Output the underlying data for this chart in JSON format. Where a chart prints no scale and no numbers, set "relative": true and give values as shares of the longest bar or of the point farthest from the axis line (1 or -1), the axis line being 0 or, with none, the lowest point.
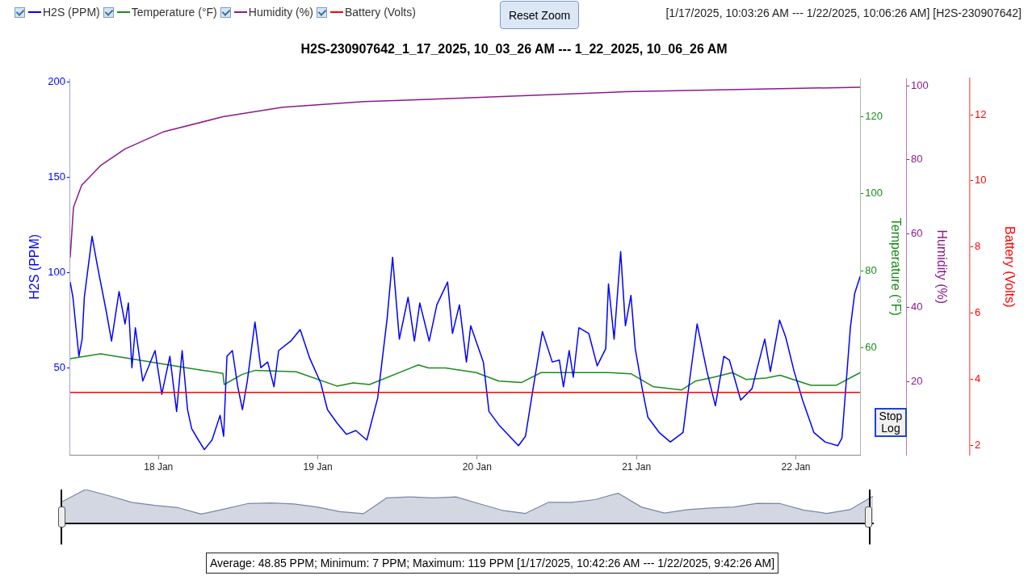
{
  "chart_data": [
    {
      "type": "line",
      "title": "H2S-230907642_1_17_2025, 10_03_26 AM --- 1_22_2025, 10_06_26 AM",
      "ylabel": "H2S (PPM)",
      "y2label": "Temperature (°F)",
      "y3label": "Humidity (%)",
      "annotations": [
        "[1/17/2025, 10:03:26 AM --- 1/22/2025, 10:06:26 AM] [H2S-230907642]",
        "Reset Zoom",
        "Stop Log",
        "Average: 48.85 PPM; Minimum: 7 PPM; Maximum: 119 PPM [1/17/2025, 10:42:26 AM --- 1/22/2025, 9:42:26 AM]"
      ],
      "xlim": [
        "2025-01-17T10:42",
        "2025-01-22T09:42"
      ],
      "xticks": [
        {
          "value": "2025-01-18",
          "label": "18 Jan"
        },
        {
          "value": "2025-01-19",
          "label": "19 Jan"
        },
        {
          "value": "2025-01-20",
          "label": "20 Jan"
        },
        {
          "value": "2025-01-21",
          "label": "21 Jan"
        },
        {
          "value": "2025-01-22",
          "label": "22 Jan"
        }
      ],
      "ylim": [
        4,
        202
      ],
      "yticks": [
        50,
        100,
        150,
        200
      ],
      "y2lim": [
        32,
        130
      ],
      "y2ticks": [
        60,
        80,
        100,
        120
      ],
      "y3lim": [
        0,
        102
      ],
      "y3ticks": [
        20,
        40,
        60,
        80,
        100
      ],
      "grid": false,
      "legend": "top left",
      "series": [
        {
          "name": "H2S (PPM)",
          "color": "#0000ff",
          "axis": "y",
          "x": [
            "2025-01-17T10:42",
            "2025-01-17T11:07",
            "2025-01-17T12:01",
            "2025-01-17T12:30",
            "2025-01-17T12:50",
            "2025-01-17T14:00",
            "2025-01-17T14:53",
            "2025-01-17T16:07",
            "2025-01-17T16:56",
            "2025-01-17T18:04",
            "2025-01-17T18:58",
            "2025-01-17T19:28",
            "2025-01-17T20:00",
            "2025-01-17T20:31",
            "2025-01-17T21:38",
            "2025-01-17T23:29",
            "2025-01-18T00:30",
            "2025-01-18T01:43",
            "2025-01-18T02:44",
            "2025-01-18T03:34",
            "2025-01-18T04:23",
            "2025-01-18T05:00",
            "2025-01-18T06:01",
            "2025-01-18T06:55",
            "2025-01-18T08:04",
            "2025-01-18T09:17",
            "2025-01-18T09:49",
            "2025-01-18T10:19",
            "2025-01-18T11:08",
            "2025-01-18T11:57",
            "2025-01-18T12:39",
            "2025-01-18T13:23",
            "2025-01-18T14:32",
            "2025-01-18T15:25",
            "2025-01-18T16:27",
            "2025-01-18T17:24",
            "2025-01-18T18:06",
            "2025-01-18T19:56",
            "2025-01-18T21:21",
            "2025-01-18T22:47",
            "2025-01-19T00:26",
            "2025-01-19T01:27",
            "2025-01-19T02:53",
            "2025-01-19T04:19",
            "2025-01-19T05:44",
            "2025-01-19T07:23",
            "2025-01-19T09:01",
            "2025-01-19T10:27",
            "2025-01-19T11:16",
            "2025-01-19T12:17",
            "2025-01-19T13:36",
            "2025-01-19T14:33",
            "2025-01-19T15:22",
            "2025-01-19T16:47",
            "2025-01-19T17:56",
            "2025-01-19T19:33",
            "2025-01-19T20:17",
            "2025-01-19T21:20",
            "2025-01-19T22:23",
            "2025-01-19T23:02",
            "2025-01-20T00:56",
            "2025-01-20T01:47",
            "2025-01-20T03:16",
            "2025-01-20T06:14",
            "2025-01-20T07:17",
            "2025-01-20T08:20",
            "2025-01-20T09:50",
            "2025-01-20T11:19",
            "2025-01-20T12:23",
            "2025-01-20T13:00",
            "2025-01-20T13:52",
            "2025-01-20T14:29",
            "2025-01-20T15:20",
            "2025-01-20T16:49",
            "2025-01-20T18:05",
            "2025-01-20T19:22",
            "2025-01-20T19:47",
            "2025-01-20T20:38",
            "2025-01-20T21:37",
            "2025-01-20T22:20",
            "2025-01-20T23:10",
            "2025-01-20T23:49",
            "2025-01-21T00:52",
            "2025-01-21T01:43",
            "2025-01-21T03:25",
            "2025-01-21T05:06",
            "2025-01-21T07:01",
            "2025-01-21T08:04",
            "2025-01-21T09:08",
            "2025-01-21T10:37",
            "2025-01-21T11:53",
            "2025-01-21T13:10",
            "2025-01-21T14:00",
            "2025-01-21T15:42",
            "2025-01-21T17:24",
            "2025-01-21T19:19",
            "2025-01-21T20:10",
            "2025-01-21T21:33",
            "2025-01-21T22:29",
            "2025-01-21T23:45",
            "2025-01-22T01:01",
            "2025-01-22T02:43",
            "2025-01-22T04:25",
            "2025-01-22T06:19",
            "2025-01-22T06:57",
            "2025-01-22T08:13",
            "2025-01-22T08:52",
            "2025-01-22T09:42"
          ],
          "values": [
            95,
            87,
            56,
            65,
            87,
            119,
            102,
            80,
            64,
            90,
            73,
            84,
            50,
            71,
            43,
            59,
            36,
            56,
            27,
            59,
            28,
            18,
            12,
            7,
            12,
            25,
            14,
            56,
            59,
            40,
            28,
            43,
            74,
            50,
            53,
            40,
            59,
            64,
            70,
            55,
            42,
            28,
            21,
            15,
            17,
            12,
            34,
            76,
            108,
            65,
            87,
            64,
            84,
            64,
            83,
            95,
            68,
            83,
            53,
            72,
            53,
            27,
            20,
            9,
            14,
            37,
            69,
            53,
            54,
            40,
            59,
            45,
            71,
            68,
            51,
            60,
            94,
            65,
            111,
            72,
            88,
            60,
            39,
            24,
            16,
            11,
            16,
            45,
            73,
            48,
            30,
            56,
            54,
            33,
            39,
            65,
            48,
            75,
            66,
            48,
            33,
            16,
            11,
            9,
            13,
            71,
            89,
            98
          ]
        },
        {
          "name": "Temperature (°F)",
          "color": "#1a8a1a",
          "axis": "y2",
          "x": [
            "2025-01-17T10:42",
            "2025-01-17T15:17",
            "2025-01-18T03:58",
            "2025-01-18T09:42",
            "2025-01-18T09:54",
            "2025-01-18T12:34",
            "2025-01-18T14:36",
            "2025-01-18T20:45",
            "2025-01-19T02:53",
            "2025-01-19T05:20",
            "2025-01-19T07:48",
            "2025-01-19T15:09",
            "2025-01-19T16:40",
            "2025-01-19T19:13",
            "2025-01-19T23:52",
            "2025-01-20T03:16",
            "2025-01-20T06:40",
            "2025-01-20T09:37",
            "2025-01-20T19:47",
            "2025-01-20T23:10",
            "2025-01-21T02:34",
            "2025-01-21T06:48",
            "2025-01-21T08:55",
            "2025-01-21T11:53",
            "2025-01-21T14:26",
            "2025-01-21T16:33",
            "2025-01-21T19:31",
            "2025-01-21T21:38",
            "2025-01-22T02:17",
            "2025-01-22T06:07",
            "2025-01-22T09:42"
          ],
          "values": [
            57.1,
            58.4,
            54.8,
            53.3,
            50.4,
            53,
            54.1,
            53.7,
            50,
            50.8,
            50.4,
            55.5,
            54.7,
            54.7,
            53.5,
            51.3,
            50.9,
            53.5,
            53.5,
            53.2,
            49.8,
            49,
            51.3,
            52.4,
            53.5,
            51.7,
            52.1,
            52.8,
            50.2,
            50.2,
            53.5
          ]
        },
        {
          "name": "Humidity (%)",
          "color": "#8b1a8b",
          "axis": "y3",
          "x": [
            "2025-01-17T10:42",
            "2025-01-17T11:12",
            "2025-01-17T12:26",
            "2025-01-17T15:17",
            "2025-01-17T18:58",
            "2025-01-18T00:42",
            "2025-01-18T09:42",
            "2025-01-18T18:42",
            "2025-01-19T06:59",
            "2025-01-19T16:40",
            "2025-01-20T22:20",
            "2025-01-22T09:42"
          ],
          "values": [
            53.5,
            67.1,
            73.1,
            78.4,
            82.9,
            87.5,
            91.6,
            94.2,
            95.7,
            96.3,
            98.4,
            99.6
          ]
        }
      ]
    },
    {
      "type": "area",
      "relative": true,
      "categories": [
        null,
        null,
        null,
        null,
        null,
        null,
        null,
        null,
        null,
        null,
        null,
        null,
        null,
        null,
        null,
        null,
        null,
        null,
        null,
        null,
        null,
        null,
        null,
        null,
        null,
        null,
        null,
        null,
        null,
        null,
        null,
        null,
        null,
        null,
        null,
        null
      ],
      "series": [
        {
          "color": "#7a86a6",
          "values": [
            0.64,
            1,
            0.82,
            0.62,
            0.53,
            0.46,
            0.27,
            0.42,
            0.58,
            0.6,
            0.57,
            0.48,
            0.34,
            0.28,
            0.75,
            0.78,
            0.75,
            0.78,
            0.58,
            0.38,
            0.29,
            0.62,
            0.62,
            0.7,
            0.89,
            0.48,
            0.3,
            0.4,
            0.45,
            0.48,
            0.59,
            0.58,
            0.39,
            0.29,
            0.4,
            0.8
          ]
        }
      ]
    },
    {
      "type": "line",
      "ylabel": "Battery (Volts)",
      "xlim": [
        "2025-01-17T10:42",
        "2025-01-22T09:42"
      ],
      "ylim": [
        1.7,
        13.1
      ],
      "yticks": [
        2,
        4,
        6,
        8,
        10,
        12
      ],
      "tick_labels": "y",
      "grid": false,
      "legend": "top left",
      "series": [
        {
          "name": "Battery (Volts)",
          "color": "#ff0000",
          "x": [
            "2025-01-17T10:42",
            "2025-01-22T09:42"
          ],
          "values": [
            3.6,
            3.6
          ]
        }
      ]
    }
  ]
}
